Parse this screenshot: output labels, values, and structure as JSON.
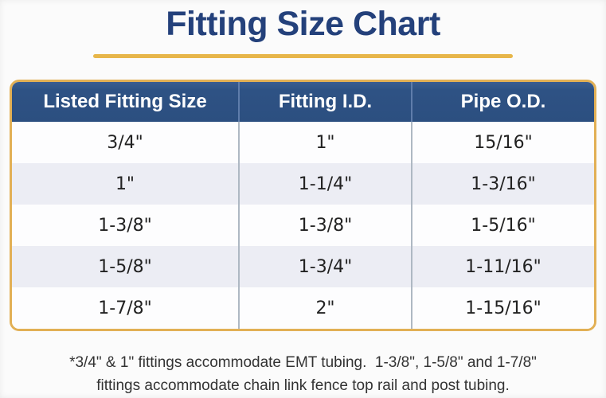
{
  "title": "Fitting Size Chart",
  "chart_data": {
    "type": "table",
    "title": "Fitting Size Chart",
    "columns": [
      "Listed Fitting Size",
      "Fitting I.D.",
      "Pipe O.D."
    ],
    "rows": [
      [
        "3/4\"",
        "1\"",
        "15/16\""
      ],
      [
        "1\"",
        "1-1/4\"",
        "1-3/16\""
      ],
      [
        "1-3/8\"",
        "1-3/8\"",
        "1-5/16\""
      ],
      [
        "1-5/8\"",
        "1-3/4\"",
        "1-11/16\""
      ],
      [
        "1-7/8\"",
        "2\"",
        "1-15/16\""
      ]
    ]
  },
  "footnote": {
    "line1": "*3/4\" & 1\" fittings accommodate EMT tubing.  1-3/8\", 1-5/8\" and 1-7/8\"",
    "line2": "fittings accommodate chain link fence top rail and post tubing."
  },
  "colors": {
    "title_navy": "#24417b",
    "gold": "#e7b64a",
    "border_gold": "#e2b055",
    "header_blue": "#2e5284",
    "stripe": "#ecedf4",
    "cell_text": "#222222",
    "footnote_text": "#333333"
  }
}
